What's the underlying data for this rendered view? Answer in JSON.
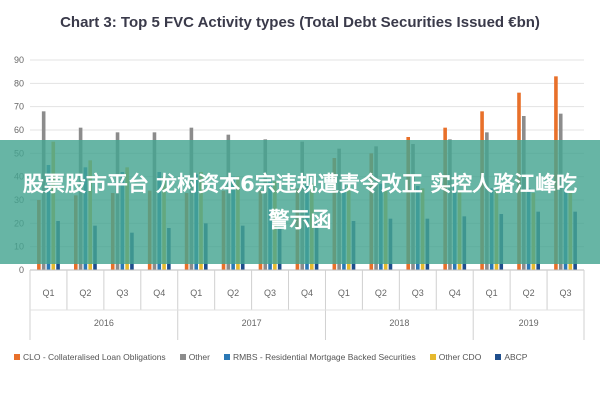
{
  "title": "Chart 3: Top 5 FVC Activity types (Total Debt Securities Issued €bn)",
  "overlay_text": "股票股市平台 龙树资本6宗违规遭责令改正 实控人骆江峰吃警示函",
  "colors": {
    "clo": "#e8702a",
    "other": "#8c8c8c",
    "rmbs": "#2a78b5",
    "other_cdo": "#e6b92e",
    "abcp": "#1f4e8c"
  },
  "chart_data": {
    "type": "bar",
    "title": "Chart 3: Top 5 FVC Activity types (Total Debt Securities Issued €bn)",
    "categories": [
      "Q1",
      "Q2",
      "Q3",
      "Q4",
      "Q1",
      "Q2",
      "Q3",
      "Q4",
      "Q1",
      "Q2",
      "Q3",
      "Q4",
      "Q1",
      "Q2",
      "Q3"
    ],
    "groups": [
      {
        "label": "2016",
        "count": 4
      },
      {
        "label": "2017",
        "count": 4
      },
      {
        "label": "2018",
        "count": 4
      },
      {
        "label": "2019",
        "count": 3
      }
    ],
    "ylim": [
      0,
      90
    ],
    "yticks": [
      0,
      10,
      20,
      30,
      40,
      50,
      60,
      70,
      80,
      90
    ],
    "grid": true,
    "legend_position": "bottom",
    "series": [
      {
        "name": "CLO - Collateralised Loan Obligations",
        "color_key": "clo",
        "values": [
          30,
          32,
          33,
          34,
          33,
          34,
          34,
          35,
          48,
          50,
          57,
          61,
          68,
          76,
          83
        ]
      },
      {
        "name": "Other",
        "color_key": "other",
        "values": [
          68,
          61,
          59,
          59,
          61,
          58,
          56,
          55,
          52,
          53,
          54,
          56,
          59,
          66,
          67
        ]
      },
      {
        "name": "RMBS - Residential Mortgage Backed Securities",
        "color_key": "rmbs",
        "values": [
          45,
          44,
          42,
          42,
          41,
          40,
          38,
          38,
          37,
          37,
          36,
          36,
          35,
          35,
          35
        ]
      },
      {
        "name": "Other CDO",
        "color_key": "other_cdo",
        "values": [
          55,
          47,
          44,
          40,
          42,
          40,
          38,
          37,
          36,
          35,
          35,
          34,
          34,
          33,
          33
        ]
      },
      {
        "name": "ABCP",
        "color_key": "abcp",
        "values": [
          21,
          19,
          16,
          18,
          20,
          19,
          18,
          20,
          21,
          22,
          22,
          23,
          24,
          25,
          25
        ]
      }
    ]
  }
}
